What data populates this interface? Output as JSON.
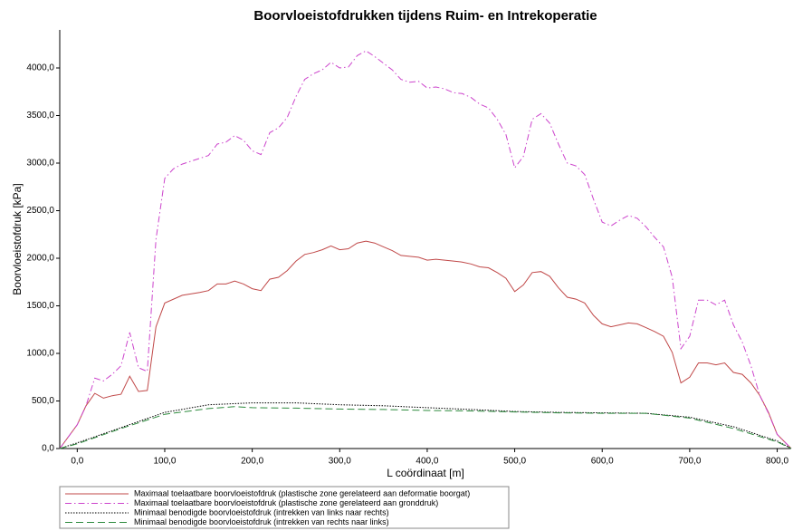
{
  "chart_data": {
    "type": "line",
    "title": "Boorvloeistofdrukken tijdens Ruim- en Intrekoperatie",
    "x_label": "L coördinaat [m]",
    "y_label": "Boorvloeistofdruk [kPa]",
    "xlim": [
      -20,
      816
    ],
    "ylim": [
      0,
      4400
    ],
    "xticks": [
      {
        "value": 0,
        "label": "0,0"
      },
      {
        "value": 100,
        "label": "100,0"
      },
      {
        "value": 200,
        "label": "200,0"
      },
      {
        "value": 300,
        "label": "300,0"
      },
      {
        "value": 400,
        "label": "400,0"
      },
      {
        "value": 500,
        "label": "500,0"
      },
      {
        "value": 600,
        "label": "600,0"
      },
      {
        "value": 700,
        "label": "700,0"
      },
      {
        "value": 800,
        "label": "800,0"
      }
    ],
    "yticks": [
      {
        "value": 0,
        "label": "0,0"
      },
      {
        "value": 500,
        "label": "500,0"
      },
      {
        "value": 1000,
        "label": "1000,0"
      },
      {
        "value": 1500,
        "label": "1500,0"
      },
      {
        "value": 2000,
        "label": "2000,0"
      },
      {
        "value": 2500,
        "label": "2500,0"
      },
      {
        "value": 3000,
        "label": "3000,0"
      },
      {
        "value": 3500,
        "label": "3500,0"
      },
      {
        "value": 4000,
        "label": "4000,0"
      }
    ],
    "grid": false,
    "legend": "bottom-left",
    "series": [
      {
        "name": "Maximaal toelaatbare boorvloeistofdruk (plastische zone gerelateerd aan deformatie boorgat)",
        "color": "#c04848",
        "style": "solid",
        "x": [
          -20,
          0,
          10,
          20,
          30,
          40,
          50,
          60,
          70,
          80,
          90,
          100,
          120,
          140,
          150,
          160,
          170,
          180,
          190,
          200,
          210,
          220,
          230,
          240,
          250,
          260,
          270,
          280,
          290,
          300,
          310,
          320,
          330,
          340,
          350,
          360,
          370,
          380,
          390,
          400,
          410,
          420,
          430,
          440,
          450,
          460,
          470,
          480,
          490,
          500,
          510,
          520,
          530,
          540,
          550,
          560,
          570,
          580,
          590,
          600,
          610,
          620,
          630,
          640,
          650,
          660,
          670,
          680,
          690,
          700,
          710,
          720,
          730,
          740,
          750,
          760,
          770,
          780,
          790,
          800,
          816
        ],
        "values": [
          0,
          250,
          450,
          580,
          530,
          555,
          570,
          760,
          600,
          610,
          1280,
          1530,
          1610,
          1640,
          1660,
          1730,
          1730,
          1760,
          1730,
          1680,
          1660,
          1780,
          1800,
          1870,
          1970,
          2040,
          2060,
          2090,
          2130,
          2090,
          2100,
          2160,
          2180,
          2160,
          2120,
          2080,
          2030,
          2020,
          2010,
          1980,
          1990,
          1980,
          1970,
          1960,
          1940,
          1910,
          1900,
          1850,
          1790,
          1650,
          1720,
          1850,
          1860,
          1810,
          1690,
          1590,
          1570,
          1530,
          1400,
          1310,
          1280,
          1300,
          1320,
          1310,
          1270,
          1230,
          1180,
          1010,
          690,
          750,
          900,
          900,
          880,
          900,
          800,
          780,
          690,
          560,
          380,
          150,
          0
        ]
      },
      {
        "name": "Maximaal toelaatbare boorvloeistofdruk (plastische zone gerelateerd aan gronddruk)",
        "color": "#cc44cc",
        "style": "dashdot",
        "x": [
          -20,
          0,
          10,
          20,
          30,
          40,
          50,
          60,
          70,
          80,
          90,
          100,
          110,
          120,
          130,
          140,
          150,
          160,
          170,
          180,
          190,
          200,
          210,
          220,
          230,
          240,
          250,
          260,
          270,
          280,
          290,
          300,
          310,
          320,
          330,
          340,
          350,
          360,
          370,
          380,
          390,
          400,
          410,
          420,
          430,
          440,
          450,
          460,
          470,
          480,
          490,
          500,
          510,
          520,
          530,
          540,
          550,
          560,
          570,
          580,
          590,
          600,
          610,
          620,
          630,
          640,
          650,
          660,
          670,
          680,
          690,
          700,
          710,
          720,
          730,
          740,
          750,
          760,
          770,
          780,
          790,
          800,
          816
        ],
        "values": [
          0,
          250,
          450,
          740,
          710,
          780,
          870,
          1220,
          850,
          810,
          2200,
          2840,
          2940,
          2990,
          3020,
          3050,
          3080,
          3200,
          3220,
          3290,
          3240,
          3130,
          3090,
          3320,
          3370,
          3480,
          3700,
          3880,
          3940,
          3980,
          4060,
          4000,
          4010,
          4130,
          4180,
          4120,
          4050,
          3980,
          3880,
          3850,
          3860,
          3790,
          3800,
          3780,
          3740,
          3730,
          3690,
          3620,
          3580,
          3460,
          3300,
          2950,
          3070,
          3460,
          3520,
          3420,
          3200,
          3000,
          2970,
          2880,
          2620,
          2380,
          2340,
          2400,
          2450,
          2420,
          2330,
          2220,
          2120,
          1800,
          1050,
          1180,
          1560,
          1560,
          1510,
          1560,
          1300,
          1120,
          870,
          560,
          370,
          150,
          0
        ]
      },
      {
        "name": "Minimaal benodigde boorvloeistofdruk (intrekken van links naar rechts)",
        "color": "#000000",
        "style": "dotted",
        "x": [
          -20,
          0,
          50,
          100,
          150,
          200,
          250,
          300,
          350,
          400,
          450,
          500,
          550,
          600,
          650,
          700,
          750,
          800,
          816
        ],
        "values": [
          0,
          60,
          220,
          380,
          460,
          480,
          480,
          460,
          450,
          430,
          410,
          390,
          380,
          375,
          370,
          330,
          230,
          80,
          0
        ]
      },
      {
        "name": "Minimaal benodigde boorvloeistofdruk (intrekken van rechts naar links)",
        "color": "#2e8b3e",
        "style": "dashed",
        "x": [
          -20,
          0,
          50,
          100,
          150,
          180,
          200,
          250,
          300,
          350,
          400,
          450,
          500,
          550,
          600,
          650,
          700,
          750,
          800,
          816
        ],
        "values": [
          0,
          50,
          210,
          360,
          420,
          440,
          430,
          425,
          415,
          410,
          400,
          395,
          385,
          375,
          370,
          370,
          320,
          210,
          70,
          0
        ]
      }
    ]
  }
}
